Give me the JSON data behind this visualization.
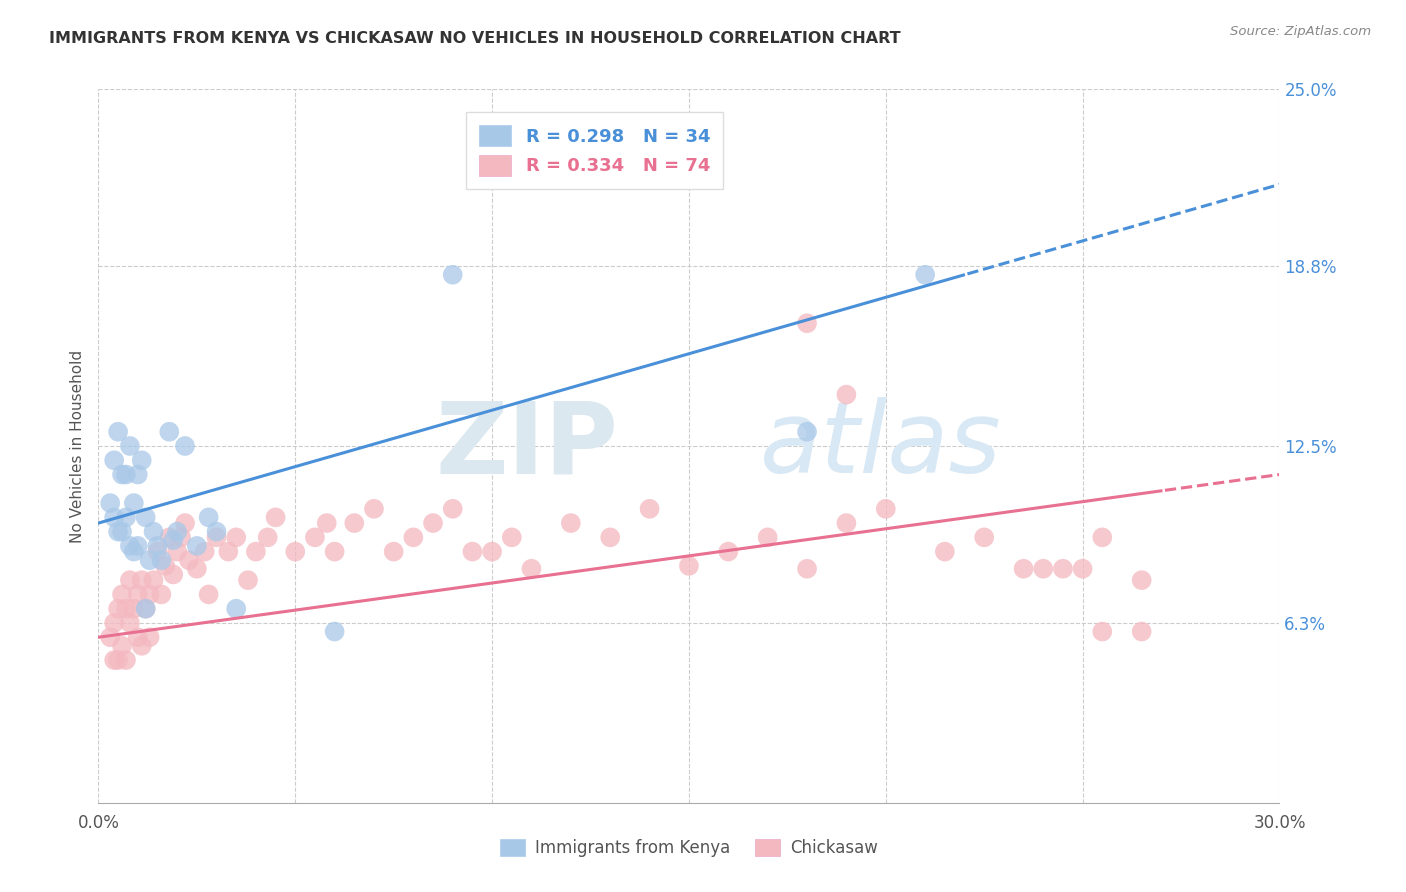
{
  "title": "IMMIGRANTS FROM KENYA VS CHICKASAW NO VEHICLES IN HOUSEHOLD CORRELATION CHART",
  "source": "Source: ZipAtlas.com",
  "ylabel": "No Vehicles in Household",
  "xlim": [
    0.0,
    0.3
  ],
  "ylim": [
    0.0,
    0.25
  ],
  "ytick_vals_right": [
    0.25,
    0.188,
    0.125,
    0.063
  ],
  "ytick_labels_right": [
    "25.0%",
    "18.8%",
    "12.5%",
    "6.3%"
  ],
  "gridline_color": "#cccccc",
  "background_color": "#ffffff",
  "legend_r1": "R = 0.298",
  "legend_n1": "N = 34",
  "legend_r2": "R = 0.334",
  "legend_n2": "N = 74",
  "blue_scatter_color": "#a8c8e8",
  "pink_scatter_color": "#f4b8c0",
  "blue_line_color": "#4a90d9",
  "pink_line_color": "#e87090",
  "blue_legend_fill": "#a8c8e8",
  "pink_legend_fill": "#f4b8c0",
  "kenya_x": [
    0.003,
    0.004,
    0.004,
    0.005,
    0.005,
    0.006,
    0.006,
    0.007,
    0.007,
    0.008,
    0.008,
    0.009,
    0.009,
    0.01,
    0.01,
    0.011,
    0.012,
    0.012,
    0.013,
    0.014,
    0.015,
    0.016,
    0.018,
    0.019,
    0.02,
    0.022,
    0.025,
    0.028,
    0.03,
    0.035,
    0.06,
    0.09,
    0.18,
    0.21
  ],
  "kenya_y": [
    0.105,
    0.12,
    0.1,
    0.13,
    0.095,
    0.115,
    0.095,
    0.115,
    0.1,
    0.125,
    0.09,
    0.105,
    0.088,
    0.115,
    0.09,
    0.12,
    0.068,
    0.1,
    0.085,
    0.095,
    0.09,
    0.085,
    0.13,
    0.092,
    0.095,
    0.125,
    0.09,
    0.1,
    0.095,
    0.068,
    0.06,
    0.185,
    0.13,
    0.185
  ],
  "chickasaw_x": [
    0.003,
    0.004,
    0.004,
    0.005,
    0.005,
    0.006,
    0.006,
    0.007,
    0.007,
    0.008,
    0.008,
    0.009,
    0.01,
    0.01,
    0.011,
    0.011,
    0.012,
    0.013,
    0.013,
    0.014,
    0.015,
    0.016,
    0.017,
    0.018,
    0.019,
    0.02,
    0.021,
    0.022,
    0.023,
    0.025,
    0.027,
    0.028,
    0.03,
    0.033,
    0.035,
    0.038,
    0.04,
    0.043,
    0.045,
    0.05,
    0.055,
    0.058,
    0.06,
    0.065,
    0.07,
    0.075,
    0.08,
    0.085,
    0.09,
    0.095,
    0.1,
    0.105,
    0.11,
    0.12,
    0.13,
    0.14,
    0.15,
    0.16,
    0.17,
    0.18,
    0.19,
    0.2,
    0.215,
    0.225,
    0.235,
    0.245,
    0.255,
    0.265,
    0.18,
    0.19,
    0.24,
    0.25,
    0.255,
    0.265
  ],
  "chickasaw_y": [
    0.058,
    0.063,
    0.05,
    0.068,
    0.05,
    0.073,
    0.055,
    0.068,
    0.05,
    0.063,
    0.078,
    0.068,
    0.073,
    0.058,
    0.078,
    0.055,
    0.068,
    0.073,
    0.058,
    0.078,
    0.088,
    0.073,
    0.083,
    0.093,
    0.08,
    0.088,
    0.093,
    0.098,
    0.085,
    0.082,
    0.088,
    0.073,
    0.093,
    0.088,
    0.093,
    0.078,
    0.088,
    0.093,
    0.1,
    0.088,
    0.093,
    0.098,
    0.088,
    0.098,
    0.103,
    0.088,
    0.093,
    0.098,
    0.103,
    0.088,
    0.088,
    0.093,
    0.082,
    0.098,
    0.093,
    0.103,
    0.083,
    0.088,
    0.093,
    0.082,
    0.098,
    0.103,
    0.088,
    0.093,
    0.082,
    0.082,
    0.093,
    0.078,
    0.168,
    0.143,
    0.082,
    0.082,
    0.06,
    0.06
  ]
}
